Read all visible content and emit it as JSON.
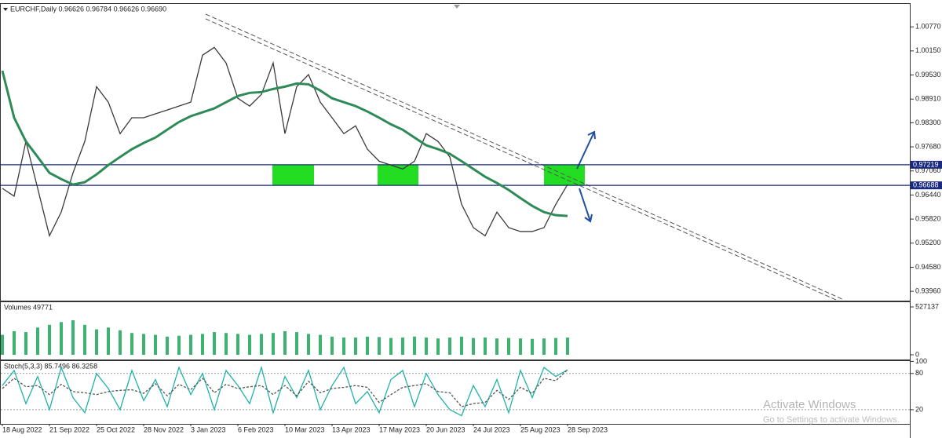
{
  "chart_data": [
    {
      "type": "line",
      "title": "EURCHF,Daily  0.96626 0.96784 0.96626 0.96690",
      "categories": [
        "18 Aug 2022",
        null,
        null,
        null,
        "21 Sep 2022",
        null,
        null,
        null,
        "25 Oct 2022",
        null,
        null,
        null,
        "28 Nov 2022",
        null,
        null,
        null,
        "3 Jan 2023",
        null,
        null,
        null,
        "6 Feb 2023",
        null,
        null,
        null,
        "10 Mar 2023",
        null,
        null,
        null,
        "13 Apr 2023",
        null,
        null,
        null,
        "17 May 2023",
        null,
        null,
        null,
        "20 Jun 2023",
        null,
        null,
        null,
        "24 Jul 2023",
        null,
        null,
        null,
        "25 Aug 2023",
        null,
        null,
        null,
        "28 Sep 2023"
      ],
      "series": [
        {
          "name": "EURCHF",
          "color": "#3a3a3a",
          "values": [
            0.9661,
            0.9641,
            0.9782,
            0.9661,
            0.9539,
            0.96,
            0.9701,
            0.9782,
            0.9923,
            0.9883,
            0.9802,
            0.9843,
            0.9843,
            0.9853,
            0.9863,
            0.9873,
            0.9883,
            1.0004,
            1.0024,
            0.9984,
            0.9893,
            0.9873,
            0.9903,
            0.9984,
            0.9802,
            0.9923,
            0.9954,
            0.9883,
            0.9843,
            0.9802,
            0.9822,
            0.9762,
            0.9731,
            0.9721,
            0.9711,
            0.9731,
            0.9802,
            0.9782,
            0.9742,
            0.962,
            0.956,
            0.9539,
            0.96,
            0.956,
            0.955,
            0.955,
            0.956,
            0.962,
            0.9671
          ]
        },
        {
          "name": "MA",
          "color": "#2e8b57",
          "values": [
            0.9964,
            0.9843,
            0.9782,
            0.9742,
            0.9701,
            0.9685,
            0.9671,
            0.9677,
            0.9697,
            0.9721,
            0.9742,
            0.9762,
            0.9778,
            0.9792,
            0.9812,
            0.9832,
            0.9847,
            0.9857,
            0.9867,
            0.9883,
            0.9899,
            0.9907,
            0.9909,
            0.9917,
            0.9923,
            0.9931,
            0.9929,
            0.9913,
            0.9893,
            0.9883,
            0.9873,
            0.9859,
            0.9843,
            0.9826,
            0.9812,
            0.9792,
            0.9772,
            0.9762,
            0.975,
            0.9731,
            0.9711,
            0.9691,
            0.9675,
            0.9657,
            0.9636,
            0.9616,
            0.96,
            0.9592,
            0.959
          ]
        }
      ],
      "ylim": [
        0.9372,
        1.0136
      ],
      "yticks": [
        {
          "value": 1.0077,
          "label": "1.00770"
        },
        {
          "value": 1.0015,
          "label": "1.00150"
        },
        {
          "value": 0.9953,
          "label": "0.99530"
        },
        {
          "value": 0.9891,
          "label": "0.98910"
        },
        {
          "value": 0.983,
          "label": "0.98300"
        },
        {
          "value": 0.9768,
          "label": "0.97680"
        },
        {
          "value": 0.9706,
          "label": "0.97060"
        },
        {
          "value": 0.9644,
          "label": "0.96440"
        },
        {
          "value": 0.9582,
          "label": "0.95820"
        },
        {
          "value": 0.952,
          "label": "0.95200"
        },
        {
          "value": 0.9458,
          "label": "0.94580"
        },
        {
          "value": 0.9396,
          "label": "0.93960"
        }
      ],
      "hlines": [
        0.97219,
        0.96688
      ]
    },
    {
      "type": "bar",
      "title": "Volumes 49771",
      "color": "#3cb371",
      "values": [
        220000,
        260000,
        250000,
        300000,
        330000,
        360000,
        380000,
        330000,
        280000,
        300000,
        270000,
        240000,
        230000,
        220000,
        200000,
        210000,
        220000,
        230000,
        250000,
        240000,
        230000,
        220000,
        230000,
        240000,
        260000,
        250000,
        230000,
        220000,
        200000,
        190000,
        190000,
        200000,
        195000,
        185000,
        190000,
        200000,
        190000,
        180000,
        190000,
        200000,
        185000,
        190000,
        180000,
        185000,
        180000,
        175000,
        180000,
        185000,
        190000
      ],
      "ylim": [
        -52000,
        579000
      ],
      "yticks": [
        0,
        527137
      ]
    },
    {
      "type": "line",
      "title": "Stoch(5,3,3) 85.7496 86.3258",
      "series": [
        {
          "name": "%K",
          "color": "#20b2aa",
          "values": [
            60,
            85,
            30,
            75,
            20,
            90,
            40,
            15,
            80,
            55,
            20,
            85,
            35,
            70,
            25,
            90,
            45,
            80,
            20,
            85,
            60,
            30,
            90,
            15,
            75,
            40,
            85,
            20,
            60,
            90,
            30,
            50,
            15,
            70,
            85,
            25,
            80,
            45,
            20,
            10,
            60,
            25,
            70,
            15,
            85,
            40,
            90,
            75,
            86
          ]
        },
        {
          "name": "%D",
          "color": "#555555",
          "values": [
            55,
            72,
            58,
            60,
            45,
            62,
            50,
            48,
            45,
            50,
            52,
            53,
            47,
            63,
            43,
            62,
            53,
            72,
            48,
            62,
            55,
            58,
            60,
            45,
            60,
            43,
            67,
            48,
            55,
            57,
            60,
            57,
            32,
            45,
            57,
            60,
            63,
            50,
            48,
            25,
            30,
            32,
            52,
            37,
            57,
            47,
            72,
            68,
            86
          ]
        }
      ],
      "ylim": [
        -3.5,
        100.5
      ],
      "yticks": [
        100,
        80,
        20
      ]
    }
  ],
  "watermark": {
    "title": "Activate Windows",
    "subtitle": "Go to Settings to activate Windows."
  }
}
